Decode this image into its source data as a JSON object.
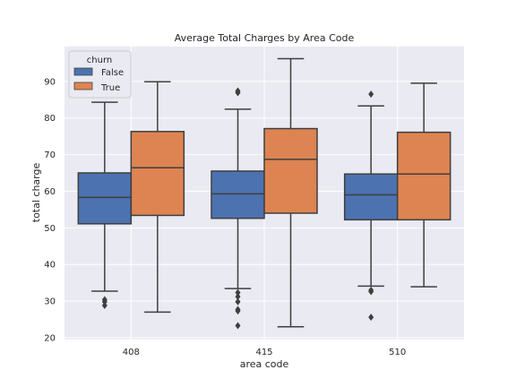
{
  "chart_data": {
    "type": "box",
    "title": "Average Total Charges by Area Code",
    "xlabel": "area code",
    "ylabel": "total charge",
    "categories": [
      "408",
      "415",
      "510"
    ],
    "ylim": [
      19.5,
      99.5
    ],
    "yticks": [
      20,
      30,
      40,
      50,
      60,
      70,
      80,
      90
    ],
    "grid": true,
    "legend": {
      "title": "churn",
      "placement": "top-left"
    },
    "series": [
      {
        "name": "False",
        "color": "#4c72b0",
        "boxes": [
          {
            "whisker_low": 32.7,
            "q1": 51.1,
            "median": 58.3,
            "q3": 65.0,
            "whisker_high": 84.3,
            "outliers": [
              28.8,
              29.8,
              30.4
            ]
          },
          {
            "whisker_low": 33.4,
            "q1": 52.6,
            "median": 59.3,
            "q3": 65.5,
            "whisker_high": 82.4,
            "outliers": [
              23.3,
              27.3,
              27.7,
              29.8,
              31.2,
              32.3,
              86.9,
              87.4
            ]
          },
          {
            "whisker_low": 34.1,
            "q1": 52.2,
            "median": 59.0,
            "q3": 64.7,
            "whisker_high": 83.3,
            "outliers": [
              25.6,
              32.6,
              33.0,
              86.5
            ]
          }
        ]
      },
      {
        "name": "True",
        "color": "#dd8452",
        "boxes": [
          {
            "whisker_low": 27.0,
            "q1": 53.4,
            "median": 66.4,
            "q3": 76.3,
            "whisker_high": 89.9,
            "outliers": []
          },
          {
            "whisker_low": 23.0,
            "q1": 54.0,
            "median": 68.7,
            "q3": 77.1,
            "whisker_high": 96.2,
            "outliers": []
          },
          {
            "whisker_low": 33.9,
            "q1": 52.2,
            "median": 64.7,
            "q3": 76.1,
            "whisker_high": 89.5,
            "outliers": []
          }
        ]
      }
    ]
  }
}
